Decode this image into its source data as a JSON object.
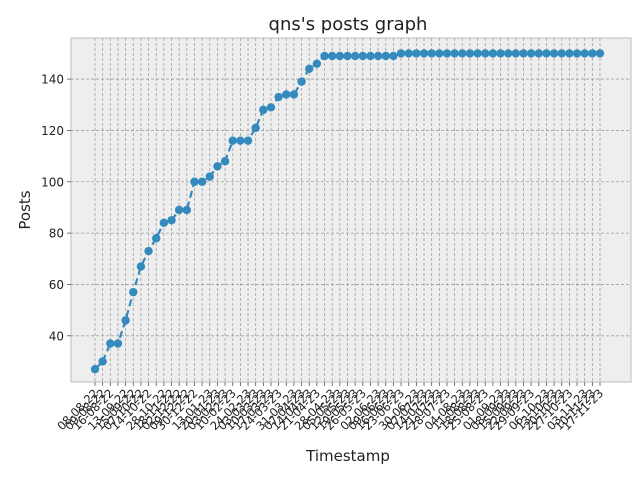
{
  "chart_data": {
    "type": "line",
    "title": "qns's posts graph",
    "xlabel": "Timestamp",
    "ylabel": "Posts",
    "ylim": [
      22,
      156
    ],
    "yticks": [
      40,
      60,
      80,
      100,
      120,
      140
    ],
    "grid": true,
    "style": "dashed line with circle markers",
    "series": [
      {
        "color": "#348ABD",
        "values": [
          27,
          30,
          37,
          37,
          46,
          57,
          67,
          73,
          78,
          84,
          85,
          89,
          89,
          100,
          100,
          102,
          106,
          108,
          116,
          116,
          116,
          121,
          128,
          129,
          133,
          134,
          134,
          139,
          144,
          146,
          149,
          149,
          149,
          149,
          149,
          149,
          149,
          149,
          149,
          149,
          150,
          150,
          150,
          150,
          150,
          150,
          150,
          150,
          150,
          150,
          150,
          150,
          150,
          150,
          150,
          150,
          150,
          150,
          150,
          150,
          150,
          150,
          150,
          150,
          150,
          150,
          150
        ]
      }
    ],
    "visible_xtick_labels": [
      "08-08-22",
      "09-08-22",
      "16-08-22",
      "13-09-22",
      "15-09-22",
      "07-10-22",
      "14-10-22",
      "28-10-22",
      "18-11-22",
      "02-12-22",
      "09-12-22",
      "30-12-22",
      "13-01-23",
      "20-01-23",
      "03-02-23",
      "10-02-23",
      "24-02-23",
      "03-03-23",
      "10-03-23",
      "17-03-23",
      "24-03-23",
      "31-03-23",
      "07-04-23",
      "14-04-23",
      "21-04-23",
      "28-04-23",
      "05-05-23",
      "12-05-23",
      "19-05-23",
      "26-05-23",
      "02-06-23",
      "09-06-23",
      "16-06-23",
      "23-06-23",
      "30-06-23",
      "07-07-23",
      "14-07-23",
      "21-07-23",
      "28-07-23",
      "04-08-23",
      "11-08-23",
      "18-08-23",
      "25-08-23",
      "01-09-23",
      "08-09-23",
      "15-09-23",
      "22-09-23",
      "29-09-23",
      "06-10-23",
      "13-10-23",
      "20-10-23",
      "27-10-23",
      "03-11-23",
      "10-11-23",
      "17-11-23"
    ]
  }
}
